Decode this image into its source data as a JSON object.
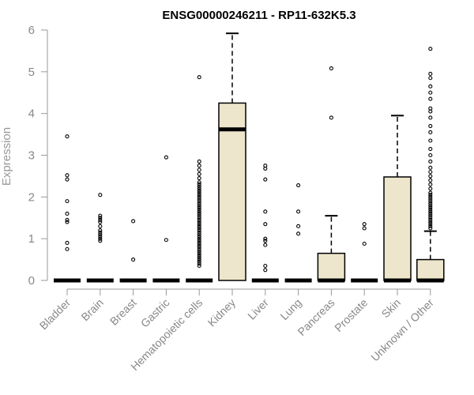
{
  "chart_data": {
    "type": "box",
    "title": "ENSG00000246211 - RP11-632K5.3",
    "xlabel": "",
    "ylabel": "Expression",
    "ylim": [
      0,
      6
    ],
    "yticks": [
      0,
      1,
      2,
      3,
      4,
      5,
      6
    ],
    "categories": [
      "Bladder",
      "Brain",
      "Breast",
      "Gastric",
      "Hematopoietic cells",
      "Kidney",
      "Liver",
      "Lung",
      "Pancreas",
      "Prostate",
      "Skin",
      "Unknown / Other"
    ],
    "box_fill": "#ede6cc",
    "boxes": [
      {
        "name": "Bladder",
        "q1": 0,
        "median": 0,
        "q3": 0,
        "whisker_low": 0,
        "whisker_high": 0,
        "outliers": [
          3.45,
          2.52,
          2.42,
          1.9,
          1.6,
          1.45,
          1.4,
          0.9,
          0.75
        ]
      },
      {
        "name": "Brain",
        "q1": 0,
        "median": 0,
        "q3": 0,
        "whisker_low": 0,
        "whisker_high": 0,
        "outliers": [
          2.05,
          1.55,
          1.5,
          1.45,
          1.4,
          1.3,
          1.2,
          1.15,
          1.1,
          1.05,
          1.0,
          0.95
        ]
      },
      {
        "name": "Breast",
        "q1": 0,
        "median": 0,
        "q3": 0,
        "whisker_low": 0,
        "whisker_high": 0,
        "outliers": [
          1.42,
          0.5
        ]
      },
      {
        "name": "Gastric",
        "q1": 0,
        "median": 0,
        "q3": 0,
        "whisker_low": 0,
        "whisker_high": 0,
        "outliers": [
          2.95,
          0.97
        ]
      },
      {
        "name": "Hematopoietic cells",
        "q1": 0,
        "median": 0,
        "q3": 0,
        "whisker_low": 0,
        "whisker_high": 0,
        "outliers": [
          4.87,
          2.85,
          2.75,
          2.65,
          2.55,
          2.45,
          2.35,
          2.3,
          2.25,
          2.2,
          2.15,
          2.1,
          2.05,
          2.0,
          1.95,
          1.9,
          1.85,
          1.8,
          1.75,
          1.7,
          1.65,
          1.6,
          1.55,
          1.5,
          1.45,
          1.4,
          1.35,
          1.3,
          1.25,
          1.2,
          1.15,
          1.1,
          1.05,
          1.0,
          0.95,
          0.9,
          0.85,
          0.8,
          0.75,
          0.7,
          0.65,
          0.6,
          0.55,
          0.5,
          0.45,
          0.4,
          0.35
        ]
      },
      {
        "name": "Kidney",
        "q1": 0,
        "median": 3.62,
        "q3": 4.25,
        "whisker_low": 0,
        "whisker_high": 5.92,
        "outliers": []
      },
      {
        "name": "Liver",
        "q1": 0,
        "median": 0,
        "q3": 0,
        "whisker_low": 0,
        "whisker_high": 0,
        "outliers": [
          2.75,
          2.68,
          2.42,
          1.65,
          1.35,
          1.0,
          0.95,
          0.85,
          0.35,
          0.25
        ]
      },
      {
        "name": "Lung",
        "q1": 0,
        "median": 0,
        "q3": 0,
        "whisker_low": 0,
        "whisker_high": 0,
        "outliers": [
          2.28,
          1.65,
          1.3,
          1.12
        ]
      },
      {
        "name": "Pancreas",
        "q1": 0,
        "median": 0,
        "q3": 0.65,
        "whisker_low": 0,
        "whisker_high": 1.55,
        "outliers": [
          5.08,
          3.9
        ]
      },
      {
        "name": "Prostate",
        "q1": 0,
        "median": 0,
        "q3": 0,
        "whisker_low": 0,
        "whisker_high": 0,
        "outliers": [
          1.35,
          1.25,
          0.88
        ]
      },
      {
        "name": "Skin",
        "q1": 0,
        "median": 0,
        "q3": 2.48,
        "whisker_low": 0,
        "whisker_high": 3.95,
        "outliers": []
      },
      {
        "name": "Unknown / Other",
        "q1": 0,
        "median": 0,
        "q3": 0.5,
        "whisker_low": 0,
        "whisker_high": 1.18,
        "outliers": [
          5.55,
          4.95,
          4.85,
          4.65,
          4.5,
          4.35,
          4.12,
          4.05,
          3.9,
          3.7,
          3.55,
          3.35,
          3.15,
          3.0,
          2.85,
          2.7,
          2.6,
          2.5,
          2.4,
          2.3,
          2.2,
          2.1,
          2.05,
          2.0,
          1.95,
          1.9,
          1.85,
          1.8,
          1.75,
          1.7,
          1.65,
          1.6,
          1.55,
          1.5,
          1.45,
          1.4,
          1.35,
          1.3,
          1.25
        ]
      }
    ]
  }
}
